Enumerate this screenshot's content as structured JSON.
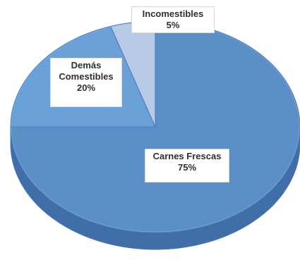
{
  "chart_data": {
    "type": "pie",
    "categories": [
      "Carnes Frescas",
      "Demás Comestibles",
      "Incomestibles"
    ],
    "values": [
      75,
      20,
      5
    ],
    "labels": {
      "carnes": {
        "lines": [
          "Carnes Frescas",
          "75%"
        ]
      },
      "demas": {
        "lines": [
          "Demás",
          "Comestibles",
          "20%"
        ]
      },
      "incomestibles": {
        "lines": [
          "Incomestibles",
          "5%"
        ]
      }
    },
    "colors": {
      "carnes_top": "#5b8fc8",
      "carnes_side": "#3f6ea9",
      "demas_top": "#6aa1d8",
      "demas_side": "#4c82bd",
      "incomestibles_top": "#b7cbe8",
      "incomestibles_side": "#8ea9d1",
      "edge": "#4a7ab7",
      "highlight": "#8eb8e6"
    }
  }
}
